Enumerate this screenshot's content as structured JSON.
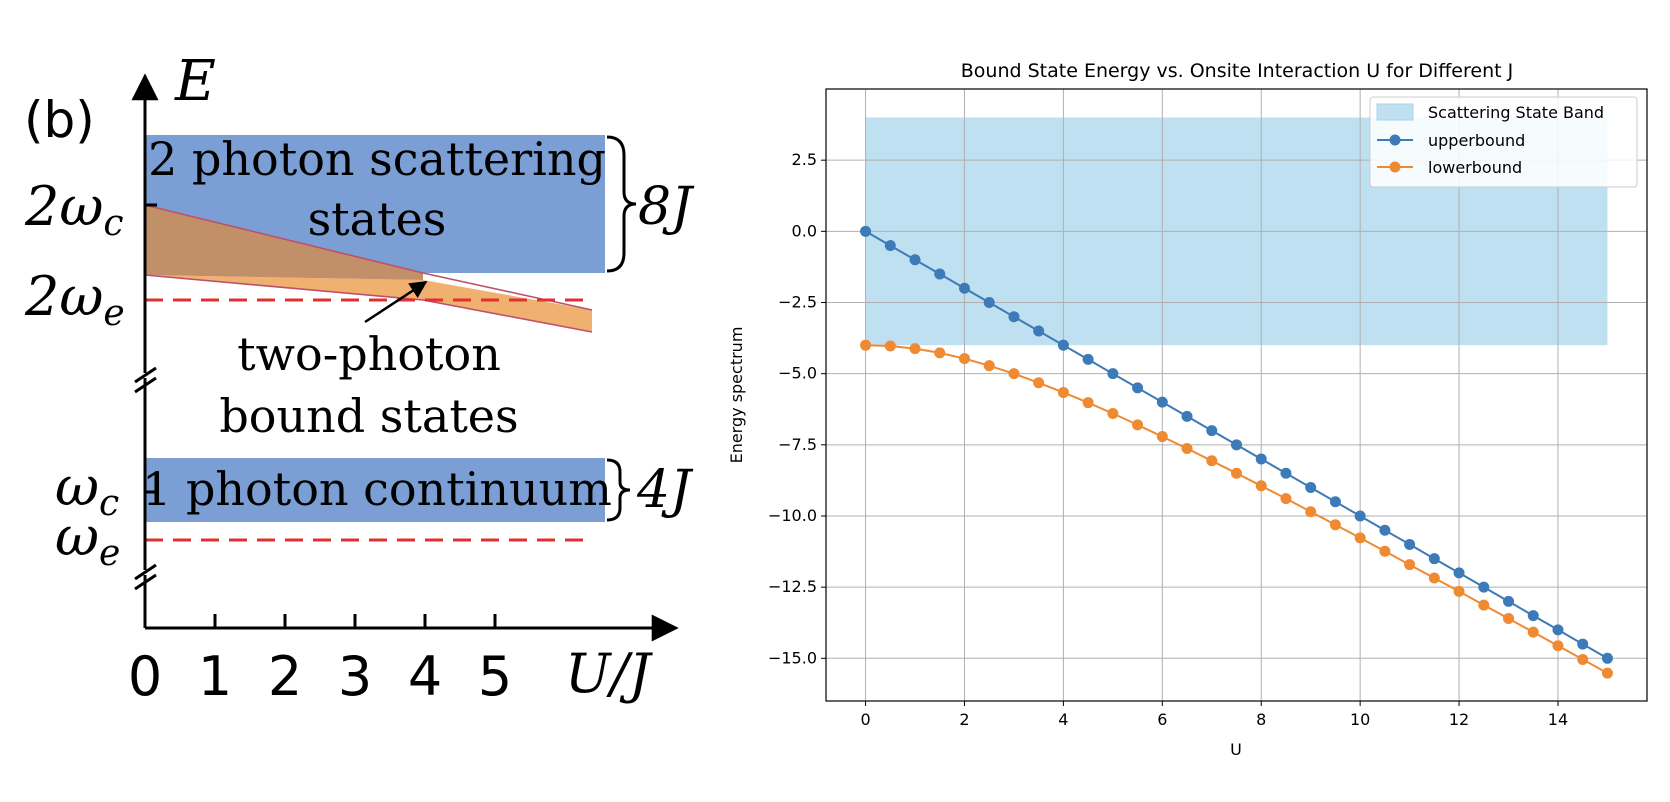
{
  "chart_data": [
    {
      "type": "area",
      "panel_label": "(b)",
      "xlabel": "U/J",
      "ylabel": "E",
      "x_ticks": [
        "0",
        "1",
        "2",
        "3",
        "4",
        "5"
      ],
      "y_levels": [
        "2ω_c",
        "2ω_e",
        "ω_c",
        "ω_e"
      ],
      "bands": [
        {
          "label_line1": "2 photon scattering",
          "label_line2": "states",
          "width_label": "8J",
          "color": "#7b9fd4"
        },
        {
          "label": "1 photon continuum",
          "width_label": "4J",
          "color": "#7b9fd4"
        }
      ],
      "bound_states": {
        "label_line1": "two-photon",
        "label_line2": "bound states",
        "color": "#f0b070",
        "overlap_color": "#c29068"
      },
      "dashed_color": "#e03030"
    },
    {
      "type": "line",
      "title": "Bound State Energy vs. Onsite Interaction U for Different J",
      "xlabel": "U",
      "ylabel": "Energy  spectrum",
      "xlim": [
        -0.8,
        15.8
      ],
      "ylim": [
        -16.5,
        5.0
      ],
      "x_ticks": [
        0,
        2,
        4,
        6,
        8,
        10,
        12,
        14
      ],
      "y_ticks": [
        2.5,
        0.0,
        -2.5,
        -5.0,
        -7.5,
        -10.0,
        -12.5,
        -15.0
      ],
      "x_tick_labels": [
        "0",
        "2",
        "4",
        "6",
        "8",
        "10",
        "12",
        "14"
      ],
      "y_tick_labels": [
        "2.5",
        "0.0",
        "−2.5",
        "−5.0",
        "−7.5",
        "−10.0",
        "−12.5",
        "−15.0"
      ],
      "grid": true,
      "legend_position": "top-right",
      "band": {
        "name": "Scattering State Band",
        "x_range": [
          0,
          15
        ],
        "y_range": [
          -4,
          4
        ],
        "color": "#bfe0f0"
      },
      "x": [
        0,
        0.5,
        1,
        1.5,
        2,
        2.5,
        3,
        3.5,
        4,
        4.5,
        5,
        5.5,
        6,
        6.5,
        7,
        7.5,
        8,
        8.5,
        9,
        9.5,
        10,
        10.5,
        11,
        11.5,
        12,
        12.5,
        13,
        13.5,
        14,
        14.5,
        15
      ],
      "series": [
        {
          "name": "upperbound",
          "color": "#3d7ab8",
          "values": [
            0,
            -0.5,
            -1.0,
            -1.5,
            -2.0,
            -2.5,
            -3.0,
            -3.5,
            -4.0,
            -4.5,
            -5.0,
            -5.5,
            -6.0,
            -6.5,
            -7.0,
            -7.5,
            -8.0,
            -8.5,
            -9.0,
            -9.5,
            -10.0,
            -10.5,
            -11.0,
            -11.5,
            -12.0,
            -12.5,
            -13.0,
            -13.5,
            -14.0,
            -14.5,
            -15.0
          ]
        },
        {
          "name": "lowerbound",
          "color": "#f08a32",
          "values": [
            -4.0,
            -4.03,
            -4.12,
            -4.27,
            -4.47,
            -4.72,
            -5.0,
            -5.32,
            -5.66,
            -6.02,
            -6.4,
            -6.8,
            -7.21,
            -7.63,
            -8.06,
            -8.5,
            -8.94,
            -9.39,
            -9.85,
            -10.31,
            -10.77,
            -11.24,
            -11.71,
            -12.18,
            -12.65,
            -13.13,
            -13.6,
            -14.08,
            -14.56,
            -15.04,
            -15.52
          ]
        }
      ]
    }
  ]
}
